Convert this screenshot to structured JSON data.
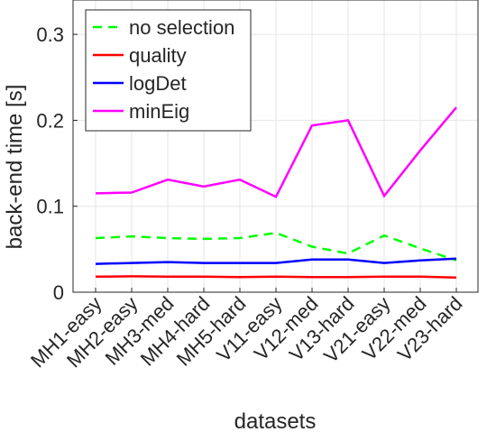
{
  "chart_data": {
    "type": "line",
    "xlabel": "datasets",
    "ylabel": "back-end time [s]",
    "categories": [
      "MH1-easy",
      "MH2-easy",
      "MH3-med",
      "MH4-hard",
      "MH5-hard",
      "V11-easy",
      "V12-med",
      "V13-hard",
      "V21-easy",
      "V22-med",
      "V23-hard"
    ],
    "ylim": [
      0,
      0.34
    ],
    "yticks": [
      0,
      0.1,
      0.2,
      0.3
    ],
    "ytick_labels": [
      "0",
      "0.1",
      "0.2",
      "0.3"
    ],
    "grid": true,
    "legend_position": "top-left",
    "series": [
      {
        "name": "no selection",
        "color": "#00ff00",
        "dash": true,
        "values": [
          0.063,
          0.065,
          0.063,
          0.062,
          0.063,
          0.069,
          0.053,
          0.045,
          0.066,
          0.051,
          0.037
        ]
      },
      {
        "name": "quality",
        "color": "#ff0000",
        "dash": false,
        "values": [
          0.018,
          0.0185,
          0.018,
          0.018,
          0.0175,
          0.018,
          0.0175,
          0.0175,
          0.018,
          0.018,
          0.017
        ]
      },
      {
        "name": "logDet",
        "color": "#0000ff",
        "dash": false,
        "values": [
          0.033,
          0.034,
          0.035,
          0.034,
          0.034,
          0.034,
          0.038,
          0.038,
          0.034,
          0.037,
          0.039
        ]
      },
      {
        "name": "minEig",
        "color": "#ff00ff",
        "dash": false,
        "values": [
          0.115,
          0.116,
          0.131,
          0.123,
          0.131,
          0.111,
          0.194,
          0.2,
          0.112,
          0.165,
          0.215
        ]
      }
    ]
  }
}
